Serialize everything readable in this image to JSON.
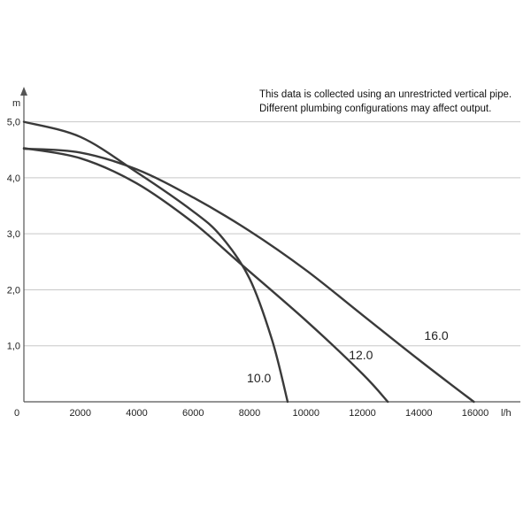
{
  "chart_data": {
    "type": "line",
    "note": [
      "This data is collected using an unrestricted vertical pipe.",
      "Different plumbing configurations may affect output."
    ],
    "xlabel": "l/h",
    "ylabel": "m",
    "xlim": [
      0,
      17600
    ],
    "ylim": [
      0,
      5.5
    ],
    "x_ticks": [
      {
        "value": 0,
        "label": "0"
      },
      {
        "value": 2000,
        "label": "2000"
      },
      {
        "value": 4000,
        "label": "4000"
      },
      {
        "value": 6000,
        "label": "6000"
      },
      {
        "value": 8000,
        "label": "8000"
      },
      {
        "value": 10000,
        "label": "10000"
      },
      {
        "value": 12000,
        "label": "12000"
      },
      {
        "value": 14000,
        "label": "14000"
      },
      {
        "value": 16000,
        "label": "16000"
      }
    ],
    "y_ticks": [
      {
        "value": 1,
        "label": "1,0"
      },
      {
        "value": 2,
        "label": "2,0"
      },
      {
        "value": 3,
        "label": "3,0"
      },
      {
        "value": 4,
        "label": "4,0"
      },
      {
        "value": 5,
        "label": "5,0"
      }
    ],
    "grid": "horizontal",
    "series": [
      {
        "name": "10.0",
        "points": [
          [
            0,
            5.0
          ],
          [
            2000,
            4.73
          ],
          [
            4000,
            4.1
          ],
          [
            6000,
            3.4
          ],
          [
            7000,
            2.95
          ],
          [
            8000,
            2.2
          ],
          [
            8800,
            1.1
          ],
          [
            9350,
            0
          ]
        ]
      },
      {
        "name": "12.0",
        "points": [
          [
            0,
            4.53
          ],
          [
            2000,
            4.35
          ],
          [
            4000,
            3.9
          ],
          [
            6000,
            3.2
          ],
          [
            7600,
            2.5
          ],
          [
            10000,
            1.45
          ],
          [
            12000,
            0.5
          ],
          [
            12900,
            0
          ]
        ]
      },
      {
        "name": "16.0",
        "points": [
          [
            0,
            4.52
          ],
          [
            2000,
            4.45
          ],
          [
            4000,
            4.15
          ],
          [
            6000,
            3.65
          ],
          [
            8000,
            3.05
          ],
          [
            10000,
            2.35
          ],
          [
            12000,
            1.55
          ],
          [
            14000,
            0.75
          ],
          [
            15950,
            0
          ]
        ]
      }
    ],
    "colors": {
      "line": "#3a3a3a",
      "axis": "#555555",
      "grid": "#c8c8c8"
    }
  }
}
